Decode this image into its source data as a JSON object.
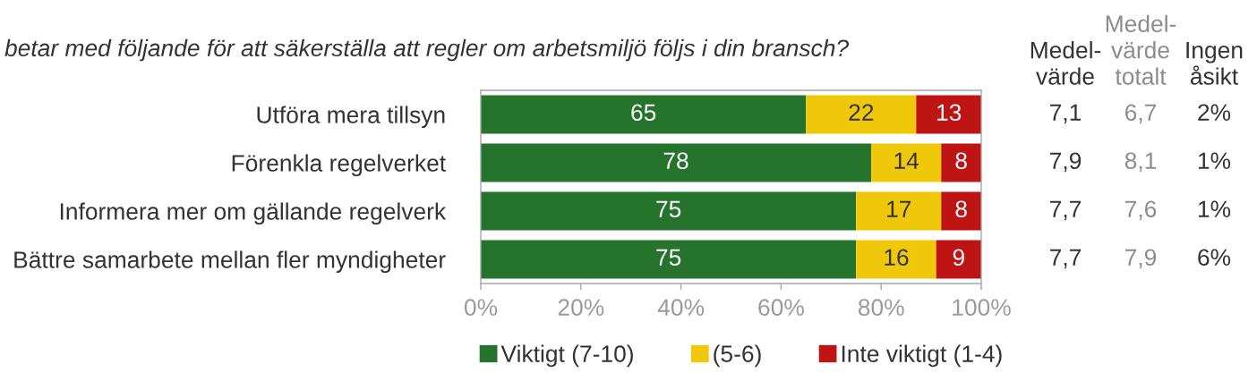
{
  "chart_data": {
    "type": "bar",
    "orientation": "horizontal",
    "stacked": true,
    "title": "betar med följande för att säkerställa att regler om arbetsmiljö följs i din bransch?",
    "categories": [
      "Utföra mera tillsyn",
      "Förenkla regelverket",
      "Informera mer om gällande regelverk",
      "Bättre samarbete mellan fler myndigheter"
    ],
    "series": [
      {
        "name": "Viktigt (7-10)",
        "color": "#26732e",
        "values": [
          65,
          78,
          75,
          75
        ]
      },
      {
        "name": "(5-6)",
        "color": "#f0c80a",
        "values": [
          22,
          14,
          17,
          16
        ]
      },
      {
        "name": "Inte viktigt (1-4)",
        "color": "#be1414",
        "values": [
          13,
          8,
          8,
          9
        ]
      }
    ],
    "xlim": [
      0,
      100
    ],
    "xticks": [
      {
        "value": 0,
        "label": "0%"
      },
      {
        "value": 20,
        "label": "20%"
      },
      {
        "value": 40,
        "label": "40%"
      },
      {
        "value": 60,
        "label": "60%"
      },
      {
        "value": 80,
        "label": "80%"
      },
      {
        "value": 100,
        "label": "100%"
      }
    ],
    "data_labels": true,
    "legend": "bottom",
    "annotations": [
      "Medel-\nvärde",
      "Medel-\nvärde\ntotalt",
      "Ingen\nåsikt",
      "7,1",
      "6,7",
      "2%",
      "7,9",
      "8,1",
      "1%",
      "7,7",
      "7,6",
      "1%",
      "7,7",
      "7,9",
      "6%"
    ]
  }
}
